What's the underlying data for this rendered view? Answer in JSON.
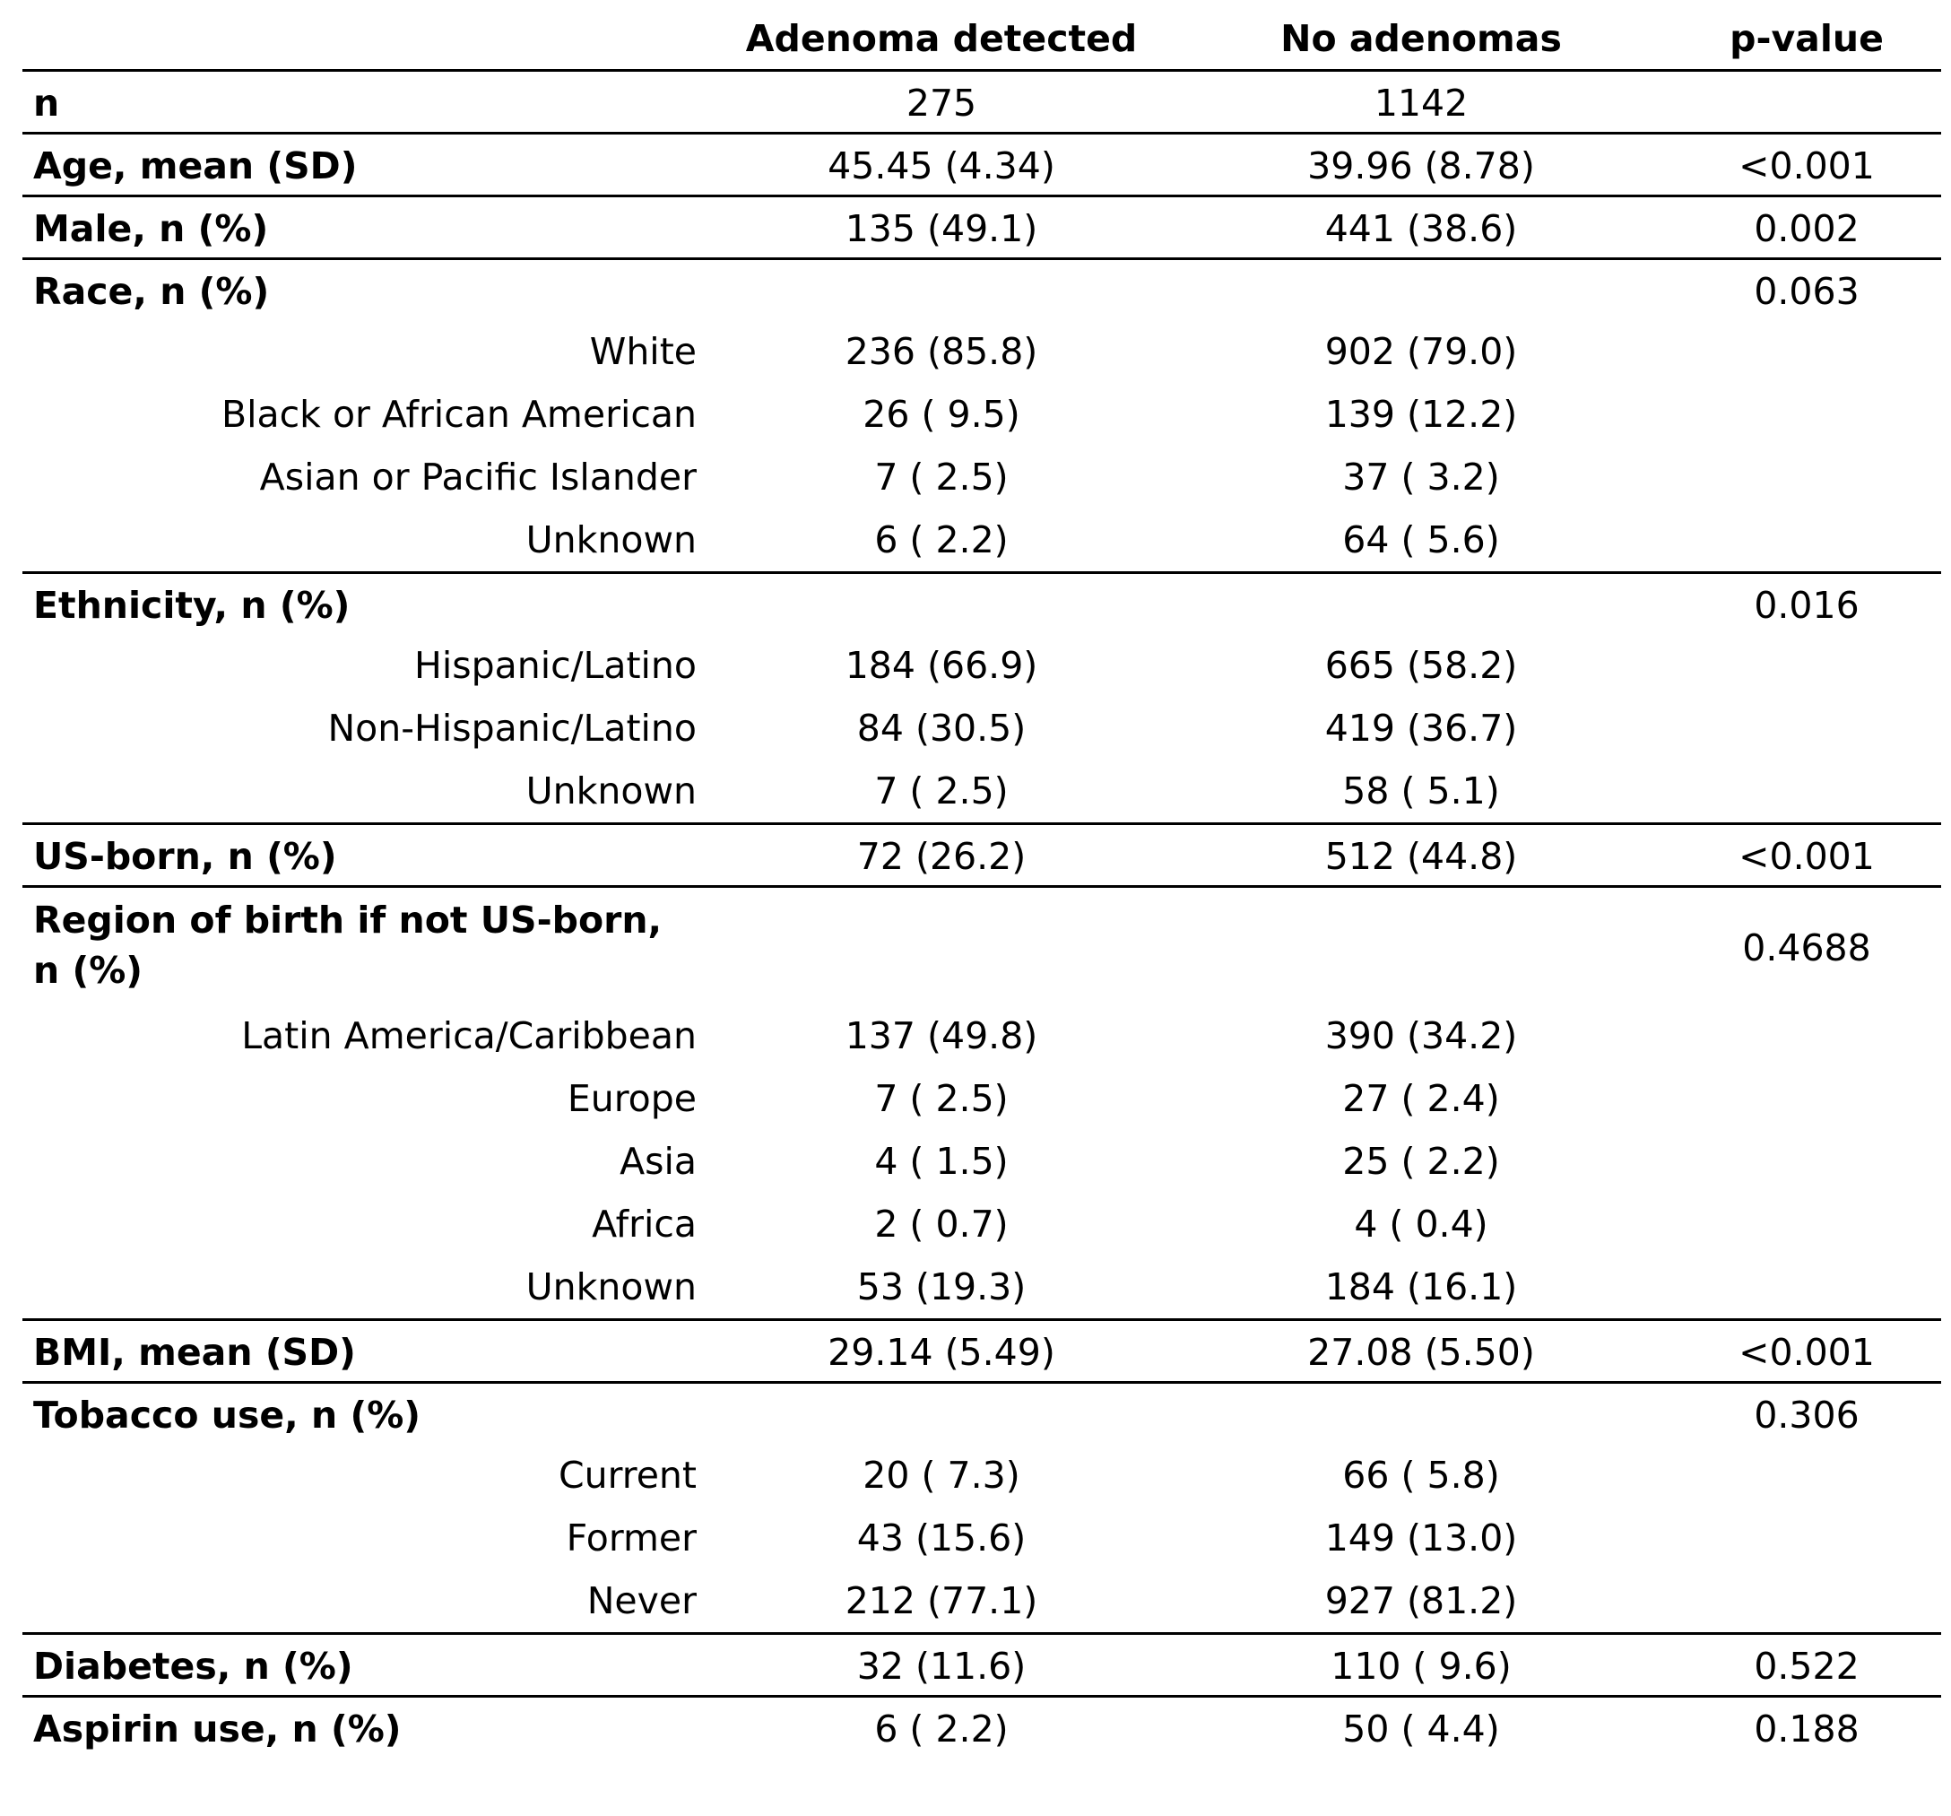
{
  "header": {
    "col_label": "",
    "col_adenoma": "Adenoma detected",
    "col_none": "No adenomas",
    "col_p": "p-value"
  },
  "rows": [
    {
      "label": "n",
      "a": "275",
      "b": "1142",
      "p": "",
      "bold": true,
      "sep": true
    },
    {
      "label": "Age, mean (SD)",
      "a": "45.45 (4.34)",
      "b": "39.96 (8.78)",
      "p": "<0.001",
      "bold": true,
      "sep": true
    },
    {
      "label": "Male, n (%)",
      "a": "135 (49.1)",
      "b": "441 (38.6)",
      "p": "0.002",
      "bold": true,
      "sep": true
    },
    {
      "label": "Race, n (%)",
      "a": "",
      "b": "",
      "p": "0.063",
      "bold": true,
      "sep": true
    },
    {
      "label": "White",
      "a": "236 (85.8)",
      "b": "902 (79.0)",
      "p": ""
    },
    {
      "label": "Black or African American",
      "a": "26 ( 9.5)",
      "b": "139 (12.2)",
      "p": ""
    },
    {
      "label": "Asian or Pacific Islander",
      "a": "7 ( 2.5)",
      "b": "37 ( 3.2)",
      "p": ""
    },
    {
      "label": "Unknown",
      "a": "6 ( 2.2)",
      "b": "64 ( 5.6)",
      "p": ""
    },
    {
      "label": "Ethnicity, n (%)",
      "a": "",
      "b": "",
      "p": "0.016",
      "bold": true,
      "sep": true
    },
    {
      "label": "Hispanic/Latino",
      "a": "184 (66.9)",
      "b": "665 (58.2)",
      "p": ""
    },
    {
      "label": "Non-Hispanic/Latino",
      "a": "84 (30.5)",
      "b": "419 (36.7)",
      "p": ""
    },
    {
      "label": "Unknown",
      "a": "7 ( 2.5)",
      "b": "58 ( 5.1)",
      "p": ""
    },
    {
      "label": "US-born, n (%)",
      "a": "72 (26.2)",
      "b": "512 (44.8)",
      "p": "<0.001",
      "bold": true,
      "sep": true
    },
    {
      "label": "Region of birth if not US-born, n (%)",
      "a": "",
      "b": "",
      "p": "0.4688",
      "bold": true,
      "sep": true,
      "tall": true
    },
    {
      "label": "Latin America/Caribbean",
      "a": "137 (49.8)",
      "b": "390 (34.2)",
      "p": ""
    },
    {
      "label": "Europe",
      "a": "7 ( 2.5)",
      "b": "27 ( 2.4)",
      "p": ""
    },
    {
      "label": "Asia",
      "a": "4 ( 1.5)",
      "b": "25 ( 2.2)",
      "p": ""
    },
    {
      "label": "Africa",
      "a": "2 ( 0.7)",
      "b": "4 ( 0.4)",
      "p": ""
    },
    {
      "label": "Unknown",
      "a": "53 (19.3)",
      "b": "184 (16.1)",
      "p": ""
    },
    {
      "label": "BMI, mean (SD)",
      "a": "29.14 (5.49)",
      "b": "27.08 (5.50)",
      "p": "<0.001",
      "bold": true,
      "sep": true
    },
    {
      "label": "Tobacco use, n (%)",
      "a": "",
      "b": "",
      "p": "0.306",
      "bold": true,
      "sep": true
    },
    {
      "label": "Current",
      "a": "20 ( 7.3)",
      "b": "66 ( 5.8)",
      "p": ""
    },
    {
      "label": "Former",
      "a": "43 (15.6)",
      "b": "149 (13.0)",
      "p": ""
    },
    {
      "label": "Never",
      "a": "212 (77.1)",
      "b": "927 (81.2)",
      "p": ""
    },
    {
      "label": "Diabetes, n (%)",
      "a": "32 (11.6)",
      "b": "110 ( 9.6)",
      "p": "0.522",
      "bold": true,
      "sep": true
    },
    {
      "label": "Aspirin use, n (%)",
      "a": "6 ( 2.2)",
      "b": "50 ( 4.4)",
      "p": "0.188",
      "bold": true,
      "sep": true
    }
  ]
}
